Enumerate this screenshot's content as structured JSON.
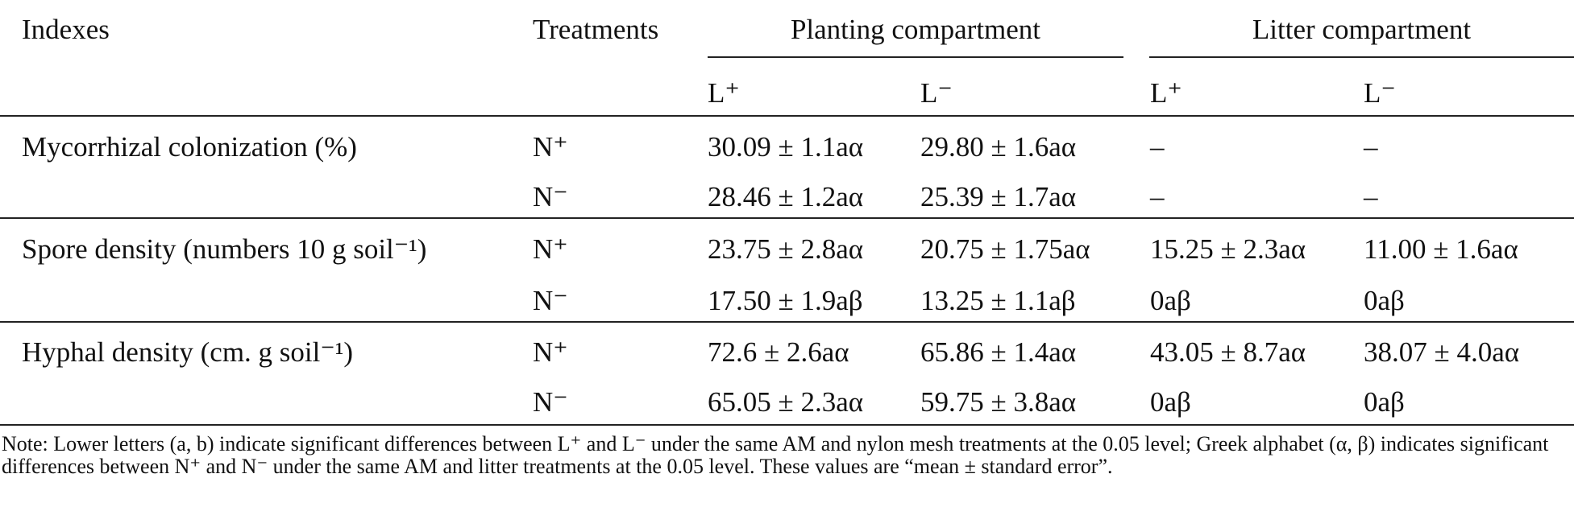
{
  "table": {
    "header": {
      "indexes": "Indexes",
      "treatments": "Treatments",
      "groups": [
        "Planting compartment",
        "Litter compartment"
      ],
      "subheaders": [
        "L⁺",
        "L⁻",
        "L⁺",
        "L⁻"
      ]
    },
    "rows": [
      {
        "index": "Mycorrhizal colonization (%)",
        "treatments": [
          {
            "label": "N⁺",
            "values": [
              "30.09 ± 1.1aα",
              "29.80 ± 1.6aα",
              "–",
              "–"
            ]
          },
          {
            "label": "N⁻",
            "values": [
              "28.46 ± 1.2aα",
              "25.39 ± 1.7aα",
              "–",
              "–"
            ]
          }
        ]
      },
      {
        "index": "Spore density (numbers 10 g soil⁻¹)",
        "treatments": [
          {
            "label": "N⁺",
            "values": [
              "23.75 ± 2.8aα",
              "20.75 ± 1.75aα",
              "15.25 ± 2.3aα",
              "11.00 ± 1.6aα"
            ]
          },
          {
            "label": "N⁻",
            "values": [
              "17.50 ± 1.9aβ",
              "13.25 ± 1.1aβ",
              "0aβ",
              "0aβ"
            ]
          }
        ]
      },
      {
        "index": "Hyphal density (cm. g soil⁻¹)",
        "treatments": [
          {
            "label": "N⁺",
            "values": [
              "72.6 ± 2.6aα",
              "65.86 ± 1.4aα",
              "43.05 ± 8.7aα",
              "38.07 ± 4.0aα"
            ]
          },
          {
            "label": "N⁻",
            "values": [
              "65.05 ± 2.3aα",
              "59.75 ± 3.8aα",
              "0aβ",
              "0aβ"
            ]
          }
        ]
      }
    ],
    "note": "Note: Lower letters (a, b) indicate significant differences between L⁺ and L⁻ under the same AM and nylon mesh treatments at the 0.05 level; Greek alphabet (α, β) indicates significant differences between N⁺ and N⁻ under the same AM and litter treatments at the 0.05 level. These values are “mean ± standard error”."
  }
}
